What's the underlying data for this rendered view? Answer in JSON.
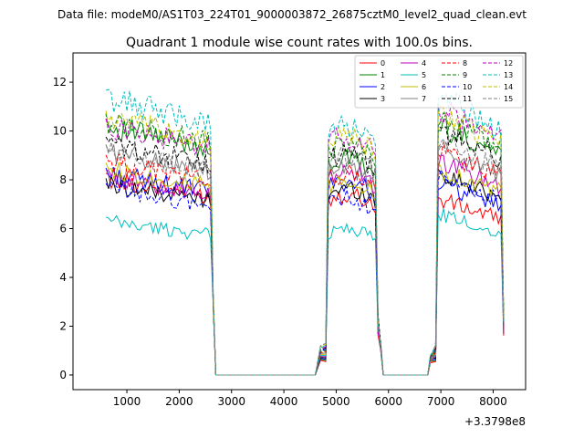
{
  "suptitle": "Data file: modeM0/AS1T03_224T01_9000003872_26875cztM0_level2_quad_clean.evt",
  "chart_data": {
    "type": "line",
    "title": "Quadrant 1 module wise count rates with 100.0s bins.",
    "xlabel": "",
    "ylabel": "",
    "x_offset_label": "+3.3798e8",
    "xlim": [
      -30,
      8620
    ],
    "ylim": [
      -0.6,
      13.2
    ],
    "xticks": [
      1000,
      2000,
      3000,
      4000,
      5000,
      6000,
      7000,
      8000
    ],
    "yticks": [
      0,
      2,
      4,
      6,
      8,
      10,
      12
    ],
    "legend_position": "top-right",
    "segments": [
      {
        "start": 600,
        "end": 2600
      },
      {
        "start": 4800,
        "end": 5800
      },
      {
        "start": 6900,
        "end": 8200
      }
    ],
    "gap_points": [
      2650,
      2700,
      4600,
      4700,
      5850,
      5900,
      6750,
      6800
    ],
    "series": [
      {
        "name": "0",
        "color": "#ff0000",
        "dash": "solid",
        "levels": [
          7.8,
          7.3,
          6.9
        ]
      },
      {
        "name": "1",
        "color": "#008000",
        "dash": "solid",
        "levels": [
          9.9,
          8.7,
          9.8
        ]
      },
      {
        "name": "2",
        "color": "#0000ff",
        "dash": "solid",
        "levels": [
          8.0,
          7.8,
          7.5
        ]
      },
      {
        "name": "3",
        "color": "#000000",
        "dash": "solid",
        "levels": [
          7.6,
          7.5,
          7.9
        ]
      },
      {
        "name": "4",
        "color": "#bf00bf",
        "dash": "solid",
        "levels": [
          7.9,
          8.2,
          8.4
        ]
      },
      {
        "name": "5",
        "color": "#00bfbf",
        "dash": "solid",
        "levels": [
          6.1,
          5.9,
          6.3
        ]
      },
      {
        "name": "6",
        "color": "#bfbf00",
        "dash": "solid",
        "levels": [
          8.2,
          7.8,
          8.1
        ]
      },
      {
        "name": "7",
        "color": "#808080",
        "dash": "solid",
        "levels": [
          8.9,
          8.3,
          8.9
        ]
      },
      {
        "name": "8",
        "color": "#ff0000",
        "dash": "dashed",
        "levels": [
          8.5,
          8.1,
          8.8
        ]
      },
      {
        "name": "9",
        "color": "#008000",
        "dash": "dashed",
        "levels": [
          10.1,
          9.3,
          10.1
        ]
      },
      {
        "name": "10",
        "color": "#0000ff",
        "dash": "dashed",
        "levels": [
          7.4,
          7.1,
          7.7
        ]
      },
      {
        "name": "11",
        "color": "#000000",
        "dash": "dashed",
        "levels": [
          9.2,
          8.9,
          9.6
        ]
      },
      {
        "name": "12",
        "color": "#bf00bf",
        "dash": "dashed",
        "levels": [
          9.9,
          9.6,
          10.4
        ]
      },
      {
        "name": "13",
        "color": "#00bfbf",
        "dash": "dashed",
        "levels": [
          11.0,
          10.0,
          10.9
        ]
      },
      {
        "name": "14",
        "color": "#bfbf00",
        "dash": "dashed",
        "levels": [
          10.2,
          9.6,
          10.3
        ]
      },
      {
        "name": "15",
        "color": "#808080",
        "dash": "dashed",
        "levels": [
          8.9,
          8.8,
          9.2
        ]
      }
    ]
  }
}
